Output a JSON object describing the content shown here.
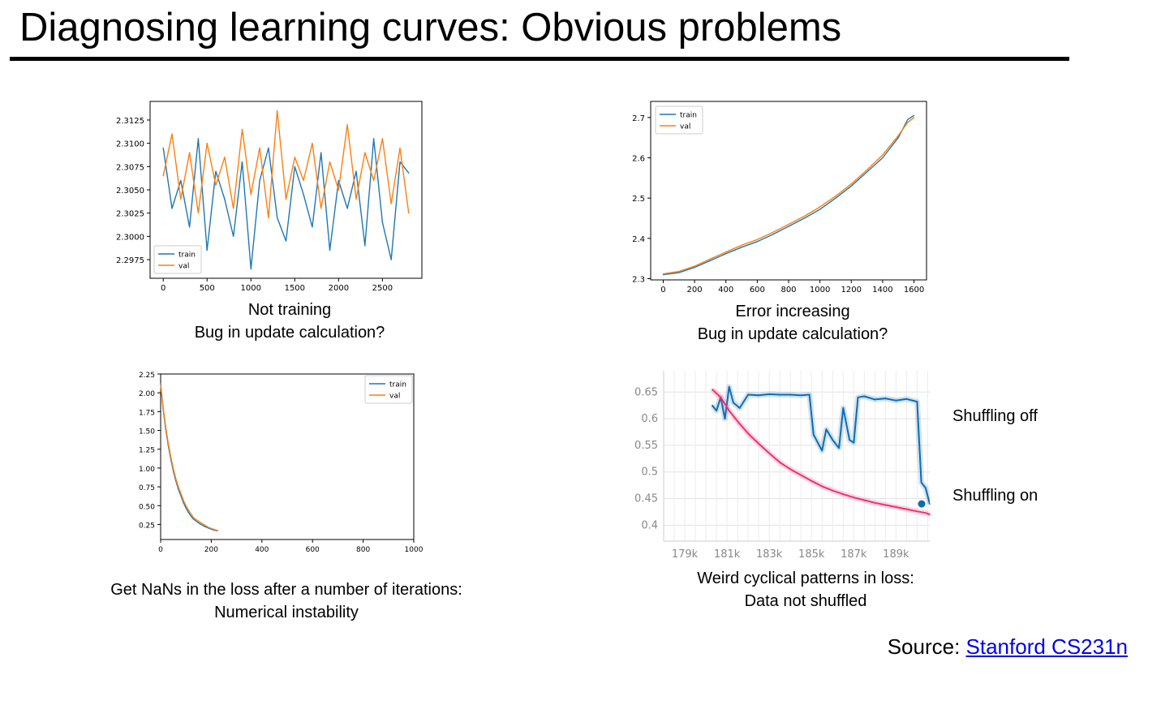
{
  "slide": {
    "title": "Diagnosing learning curves: Obvious problems",
    "captions": [
      {
        "line1": "Not training",
        "line2": "Bug in update calculation?"
      },
      {
        "line1": "Error increasing",
        "line2": "Bug in update calculation?"
      },
      {
        "line1": "Get NaNs in the loss after a number of iterations:",
        "line2": "Numerical instability"
      },
      {
        "line1": "Weird cyclical patterns in loss:",
        "line2": "Data not shuffled"
      }
    ],
    "source_prefix": "Source: ",
    "source_link": "Stanford CS231n"
  },
  "chart_data": [
    {
      "type": "line",
      "colors": {
        "train": "#1f77b4",
        "val": "#ff7f0e"
      },
      "legend_position": "lower-left",
      "xlim": [
        -150,
        2950
      ],
      "ylim": [
        2.2955,
        2.3145
      ],
      "xticks": [
        0,
        500,
        1000,
        1500,
        2000,
        2500
      ],
      "yticks": [
        2.2975,
        2.3,
        2.3025,
        2.305,
        2.3075,
        2.31,
        2.3125
      ],
      "yticklabels": [
        "2.2975",
        "2.3000",
        "2.3025",
        "2.3050",
        "2.3075",
        "2.3100",
        "2.3125"
      ],
      "series": [
        {
          "name": "train",
          "x_start": 0,
          "x_step": 100,
          "values": [
            2.3095,
            2.303,
            2.306,
            2.301,
            2.3105,
            2.2985,
            2.307,
            2.304,
            2.3,
            2.308,
            2.2965,
            2.306,
            2.3095,
            2.302,
            2.2995,
            2.3075,
            2.3045,
            2.301,
            2.309,
            2.2985,
            2.306,
            2.303,
            2.307,
            2.299,
            2.3105,
            2.3015,
            2.2975,
            2.308,
            2.3068
          ]
        },
        {
          "name": "val",
          "x_start": 0,
          "x_step": 100,
          "values": [
            2.3065,
            2.311,
            2.304,
            2.309,
            2.3025,
            2.31,
            2.3055,
            2.3085,
            2.303,
            2.3115,
            2.3045,
            2.3095,
            2.302,
            2.3135,
            2.304,
            2.3085,
            2.306,
            2.31,
            2.303,
            2.308,
            2.305,
            2.312,
            2.304,
            2.309,
            2.306,
            2.3105,
            2.3035,
            2.3095,
            2.3025
          ]
        }
      ]
    },
    {
      "type": "line",
      "colors": {
        "train": "#1f77b4",
        "val": "#ff7f0e"
      },
      "legend_position": "upper-left",
      "xlim": [
        -80,
        1680
      ],
      "ylim": [
        2.297,
        2.74
      ],
      "xticks": [
        0,
        200,
        400,
        600,
        800,
        1000,
        1200,
        1400,
        1600
      ],
      "yticks": [
        2.3,
        2.4,
        2.5,
        2.6,
        2.7
      ],
      "yticklabels": [
        "2.3",
        "2.4",
        "2.5",
        "2.6",
        "2.7"
      ],
      "series": [
        {
          "name": "train",
          "x": [
            0,
            100,
            200,
            300,
            400,
            500,
            600,
            700,
            800,
            900,
            1000,
            1100,
            1200,
            1300,
            1400,
            1500,
            1560,
            1600
          ],
          "values": [
            2.31,
            2.315,
            2.328,
            2.345,
            2.362,
            2.378,
            2.392,
            2.41,
            2.43,
            2.45,
            2.472,
            2.5,
            2.53,
            2.565,
            2.6,
            2.65,
            2.695,
            2.705
          ]
        },
        {
          "name": "val",
          "x": [
            0,
            100,
            200,
            300,
            400,
            500,
            600,
            700,
            800,
            900,
            1000,
            1100,
            1200,
            1300,
            1400,
            1500,
            1560,
            1600
          ],
          "values": [
            2.312,
            2.318,
            2.331,
            2.349,
            2.366,
            2.383,
            2.397,
            2.415,
            2.435,
            2.455,
            2.478,
            2.505,
            2.535,
            2.57,
            2.607,
            2.655,
            2.688,
            2.7
          ]
        }
      ]
    },
    {
      "type": "line",
      "colors": {
        "train": "#1f77b4",
        "val": "#ff7f0e"
      },
      "legend_position": "upper-right",
      "xlim": [
        0,
        1000
      ],
      "ylim": [
        0.05,
        2.25
      ],
      "xticks": [
        0,
        200,
        400,
        600,
        800,
        1000
      ],
      "yticks": [
        0.25,
        0.5,
        0.75,
        1.0,
        1.25,
        1.5,
        1.75,
        2.0,
        2.25
      ],
      "yticklabels": [
        "0.25",
        "0.50",
        "0.75",
        "1.00",
        "1.25",
        "1.50",
        "1.75",
        "2.00",
        "2.25"
      ],
      "series": [
        {
          "name": "train",
          "x": [
            0,
            10,
            20,
            30,
            40,
            50,
            60,
            70,
            80,
            90,
            100,
            110,
            120,
            130,
            150,
            170,
            190,
            210,
            225
          ],
          "values": [
            2.12,
            1.78,
            1.52,
            1.3,
            1.12,
            0.96,
            0.83,
            0.72,
            0.63,
            0.54,
            0.47,
            0.41,
            0.36,
            0.32,
            0.27,
            0.23,
            0.2,
            0.175,
            0.165
          ]
        },
        {
          "name": "val",
          "x": [
            0,
            10,
            20,
            30,
            40,
            50,
            60,
            70,
            80,
            90,
            100,
            110,
            120,
            130,
            150,
            170,
            190,
            210,
            225
          ],
          "values": [
            2.1,
            1.8,
            1.55,
            1.33,
            1.15,
            0.99,
            0.86,
            0.75,
            0.66,
            0.57,
            0.5,
            0.44,
            0.39,
            0.34,
            0.29,
            0.25,
            0.21,
            0.185,
            0.17
          ]
        }
      ]
    },
    {
      "type": "line",
      "colors": {
        "shuffling_off": "#0f6cb3",
        "shuffling_on": "#f0306e"
      },
      "xlim": [
        178000,
        190600
      ],
      "ylim": [
        0.37,
        0.69
      ],
      "xticks": [
        179000,
        181000,
        183000,
        185000,
        187000,
        189000
      ],
      "xticklabels": [
        "179k",
        "181k",
        "183k",
        "185k",
        "187k",
        "189k"
      ],
      "yticks": [
        0.4,
        0.45,
        0.5,
        0.55,
        0.6,
        0.65
      ],
      "yticklabels": [
        "0.4",
        "0.45",
        "0.5",
        "0.55",
        "0.6",
        "0.65"
      ],
      "series": [
        {
          "name": "Shuffling off",
          "x": [
            180300,
            180500,
            180700,
            180900,
            181100,
            181300,
            181600,
            182000,
            182500,
            183000,
            183500,
            184000,
            184500,
            184900,
            185100,
            185300,
            185500,
            185700,
            186000,
            186300,
            186500,
            186800,
            187000,
            187200,
            187500,
            188000,
            188500,
            189000,
            189500,
            190000,
            190200,
            190400,
            190600
          ],
          "values": [
            0.625,
            0.615,
            0.64,
            0.6,
            0.66,
            0.63,
            0.62,
            0.645,
            0.644,
            0.646,
            0.645,
            0.645,
            0.644,
            0.645,
            0.57,
            0.555,
            0.54,
            0.58,
            0.56,
            0.545,
            0.62,
            0.56,
            0.555,
            0.64,
            0.642,
            0.636,
            0.638,
            0.634,
            0.637,
            0.632,
            0.48,
            0.47,
            0.44
          ]
        },
        {
          "name": "Shuffling on",
          "x": [
            180300,
            180700,
            181100,
            181500,
            182000,
            182500,
            183000,
            183500,
            184000,
            184500,
            185000,
            185500,
            186000,
            186500,
            187000,
            187500,
            188000,
            188500,
            189000,
            189500,
            190000,
            190400,
            190600
          ],
          "values": [
            0.655,
            0.64,
            0.615,
            0.595,
            0.572,
            0.553,
            0.535,
            0.518,
            0.505,
            0.494,
            0.483,
            0.473,
            0.465,
            0.458,
            0.452,
            0.447,
            0.442,
            0.438,
            0.434,
            0.43,
            0.426,
            0.423,
            0.42
          ]
        }
      ]
    }
  ]
}
